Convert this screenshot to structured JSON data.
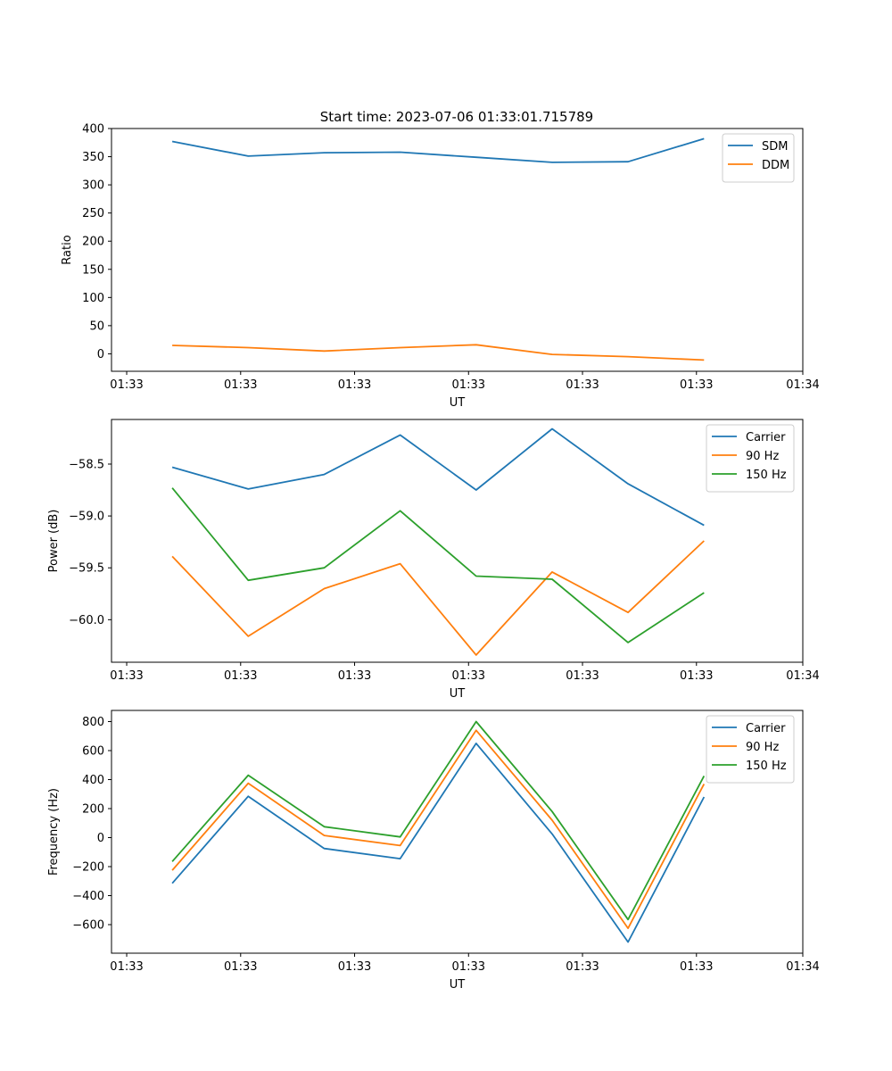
{
  "figure_title": "Start time: 2023-07-06 01:33:01.715789",
  "chart_data": [
    {
      "type": "line",
      "title": "Start time: 2023-07-06 01:33:01.715789",
      "xlabel": "UT",
      "ylabel": "Ratio",
      "x": [
        1,
        2,
        3,
        4,
        5,
        6,
        7,
        8
      ],
      "xlim": [
        0.2,
        9.3
      ],
      "xticks": [
        0.4,
        1.9,
        3.4,
        4.9,
        6.4,
        7.9,
        9.3
      ],
      "xtick_labels": [
        "01:33",
        "01:33",
        "01:33",
        "01:33",
        "01:33",
        "01:33",
        "01:34"
      ],
      "ylim": [
        -31,
        400
      ],
      "yticks": [
        0,
        50,
        100,
        150,
        200,
        250,
        300,
        350,
        400
      ],
      "ytick_labels": [
        "0",
        "50",
        "100",
        "150",
        "200",
        "250",
        "300",
        "350",
        "400"
      ],
      "series": [
        {
          "name": "SDM",
          "color": "#1f77b4",
          "values": [
            377,
            351,
            357,
            358,
            349,
            340,
            341,
            382
          ]
        },
        {
          "name": "DDM",
          "color": "#ff7f0e",
          "values": [
            15,
            11,
            5,
            11,
            16,
            -1,
            -5,
            -11
          ]
        }
      ],
      "legend": "top-right"
    },
    {
      "type": "line",
      "xlabel": "UT",
      "ylabel": "Power (dB)",
      "x": [
        1,
        2,
        3,
        4,
        5,
        6,
        7,
        8
      ],
      "xlim": [
        0.2,
        9.3
      ],
      "xticks": [
        0.4,
        1.9,
        3.4,
        4.9,
        6.4,
        7.9,
        9.3
      ],
      "xtick_labels": [
        "01:33",
        "01:33",
        "01:33",
        "01:33",
        "01:33",
        "01:33",
        "01:34"
      ],
      "ylim": [
        -60.41,
        -58.07
      ],
      "yticks": [
        -58.5,
        -59.0,
        -59.5,
        -60.0
      ],
      "ytick_labels": [
        "−58.5",
        "−59.0",
        "−59.5",
        "−60.0"
      ],
      "series": [
        {
          "name": "Carrier",
          "color": "#1f77b4",
          "values": [
            -58.53,
            -58.74,
            -58.6,
            -58.22,
            -58.75,
            -58.16,
            -58.69,
            -59.09
          ]
        },
        {
          "name": "90 Hz",
          "color": "#ff7f0e",
          "values": [
            -59.39,
            -60.16,
            -59.7,
            -59.46,
            -60.34,
            -59.54,
            -59.93,
            -59.24
          ]
        },
        {
          "name": "150 Hz",
          "color": "#2ca02c",
          "values": [
            -58.73,
            -59.62,
            -59.5,
            -58.95,
            -59.58,
            -59.61,
            -60.22,
            -59.74
          ]
        }
      ],
      "legend": "top-right"
    },
    {
      "type": "line",
      "xlabel": "UT",
      "ylabel": "Frequency (Hz)",
      "x": [
        1,
        2,
        3,
        4,
        5,
        6,
        7,
        8
      ],
      "xlim": [
        0.2,
        9.3
      ],
      "xticks": [
        0.4,
        1.9,
        3.4,
        4.9,
        6.4,
        7.9,
        9.3
      ],
      "xtick_labels": [
        "01:33",
        "01:33",
        "01:33",
        "01:33",
        "01:33",
        "01:33",
        "01:34"
      ],
      "ylim": [
        -797,
        877
      ],
      "yticks": [
        800,
        600,
        400,
        200,
        0,
        -200,
        -400,
        -600
      ],
      "ytick_labels": [
        "800",
        "600",
        "400",
        "200",
        "0",
        "−200",
        "−400",
        "−600"
      ],
      "series": [
        {
          "name": "Carrier",
          "color": "#1f77b4",
          "values": [
            -315,
            285,
            -75,
            -145,
            650,
            25,
            -720,
            280
          ]
        },
        {
          "name": "90 Hz",
          "color": "#ff7f0e",
          "values": [
            -225,
            375,
            15,
            -55,
            740,
            120,
            -625,
            370
          ]
        },
        {
          "name": "150 Hz",
          "color": "#2ca02c",
          "values": [
            -165,
            430,
            75,
            5,
            800,
            180,
            -565,
            425
          ]
        }
      ],
      "legend": "top-right"
    }
  ]
}
